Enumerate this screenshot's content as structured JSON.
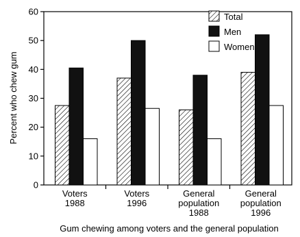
{
  "chart_data": {
    "type": "bar",
    "title": "",
    "caption": "Gum chewing among voters and the general population",
    "xlabel": "",
    "ylabel": "Percent who chew gum",
    "ylim": [
      0,
      60
    ],
    "yticks": [
      "0",
      "10",
      "20",
      "30",
      "40",
      "50",
      "60"
    ],
    "grid": false,
    "legend_position": "top-right",
    "categories": [
      [
        "Voters",
        "1988"
      ],
      [
        "Voters",
        "1996"
      ],
      [
        "General",
        "population",
        "1988"
      ],
      [
        "General",
        "population",
        "1996"
      ]
    ],
    "series": [
      {
        "name": "Total",
        "values": [
          27.5,
          37,
          26,
          39
        ],
        "fill": "hatch"
      },
      {
        "name": "Men",
        "values": [
          40.5,
          50,
          38,
          52
        ],
        "color": "#111111"
      },
      {
        "name": "Women",
        "values": [
          16,
          26.5,
          16,
          27.5
        ],
        "color": "#ffffff"
      }
    ]
  }
}
